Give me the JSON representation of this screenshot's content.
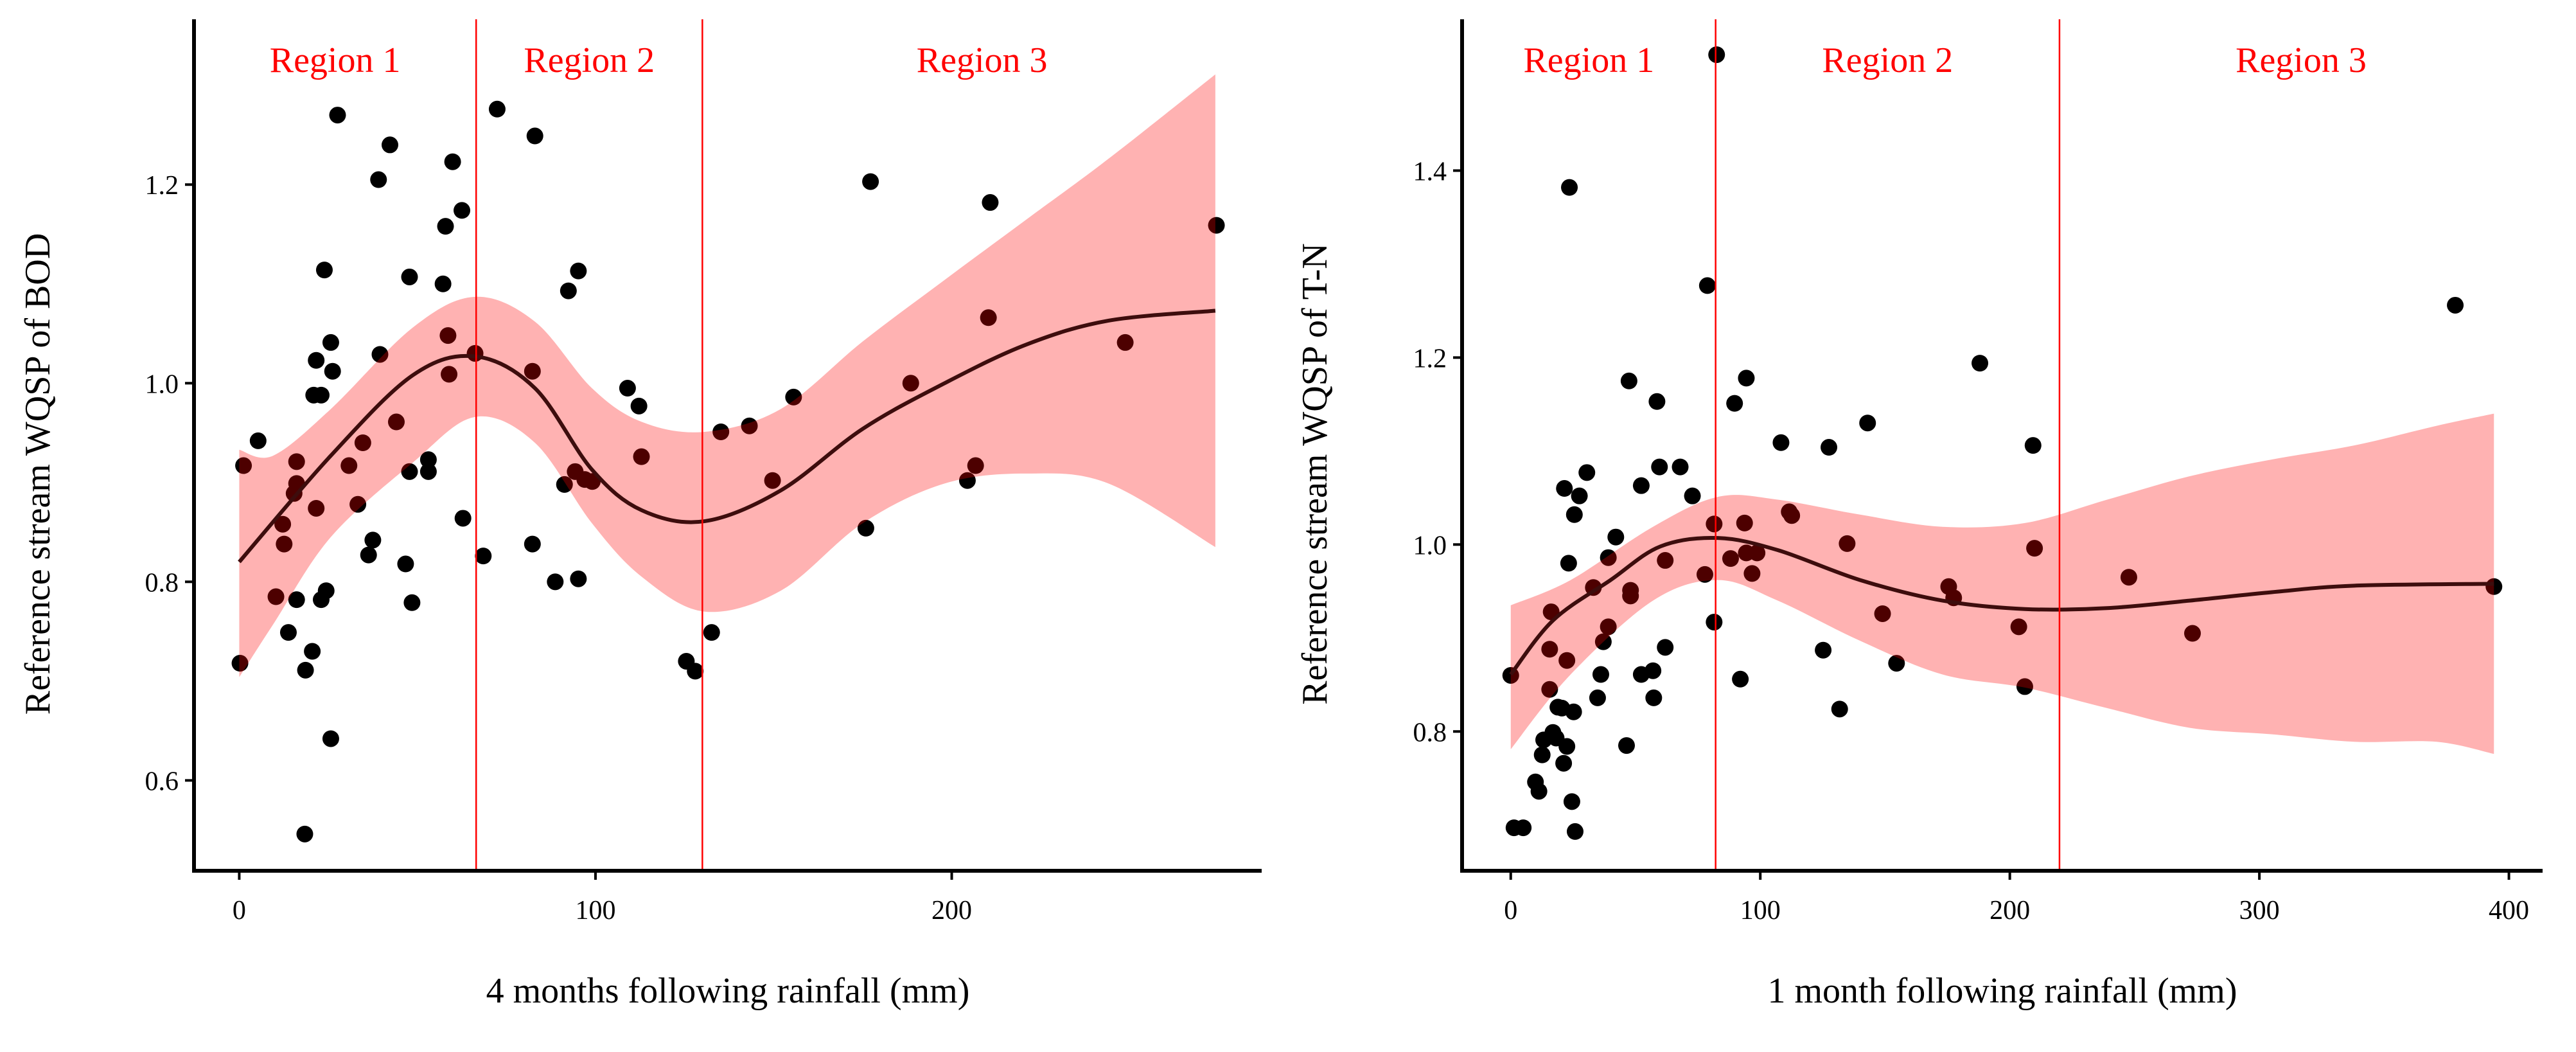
{
  "colors": {
    "points": "#000000",
    "band": "#ff0000",
    "fit_line": "#3d0d0d",
    "region_line": "#ff0000",
    "region_text": "#ff0000"
  },
  "chart_data": [
    {
      "type": "scatter",
      "title": "",
      "xlabel": "4 months following rainfall (mm)",
      "ylabel": "Reference stream WQSP of BOD",
      "xlim": [
        -12.7,
        287
      ],
      "ylim": [
        0.509,
        1.36
      ],
      "xticks": [
        0,
        100,
        200
      ],
      "xtick_labels": [
        "0",
        "100",
        "200"
      ],
      "yticks": [
        0.6,
        0.8,
        1.0,
        1.2
      ],
      "ytick_labels": [
        "0.6",
        "0.8",
        "1.0",
        "1.2"
      ],
      "grid": false,
      "regions": [
        {
          "label": "Region 1"
        },
        {
          "label": "Region 2"
        },
        {
          "label": "Region 3"
        }
      ],
      "region_boundaries": [
        66.5,
        130
      ],
      "points": [
        [
          1.2,
          0.917
        ],
        [
          0.2,
          0.718
        ],
        [
          5.3,
          0.942
        ],
        [
          27.6,
          1.27
        ],
        [
          10.3,
          0.785
        ],
        [
          12.2,
          0.858
        ],
        [
          12.6,
          0.838
        ],
        [
          13.8,
          0.749
        ],
        [
          16.1,
          0.921
        ],
        [
          16.1,
          0.899
        ],
        [
          15.4,
          0.889
        ],
        [
          16.1,
          0.782
        ],
        [
          21.6,
          0.874
        ],
        [
          18.6,
          0.711
        ],
        [
          20.5,
          0.73
        ],
        [
          18.4,
          0.546
        ],
        [
          21.6,
          1.023
        ],
        [
          20.9,
          0.988
        ],
        [
          23,
          0.988
        ],
        [
          23.9,
          1.114
        ],
        [
          25.7,
          1.041
        ],
        [
          26.2,
          1.012
        ],
        [
          23,
          0.782
        ],
        [
          24.4,
          0.791
        ],
        [
          25.7,
          0.642
        ],
        [
          30.8,
          0.917
        ],
        [
          33.3,
          0.878
        ],
        [
          34.7,
          0.94
        ],
        [
          36.3,
          0.827
        ],
        [
          37.5,
          0.842
        ],
        [
          39.1,
          1.205
        ],
        [
          39.5,
          1.029
        ],
        [
          42.3,
          1.24
        ],
        [
          44.1,
          0.961
        ],
        [
          47.8,
          1.107
        ],
        [
          47.8,
          0.911
        ],
        [
          46.7,
          0.818
        ],
        [
          48.5,
          0.779
        ],
        [
          53.1,
          0.923
        ],
        [
          53.1,
          0.911
        ],
        [
          57.2,
          1.1
        ],
        [
          57.9,
          1.158
        ],
        [
          59.9,
          1.223
        ],
        [
          58.6,
          1.048
        ],
        [
          58.9,
          1.009
        ],
        [
          62.5,
          1.174
        ],
        [
          62.8,
          0.864
        ],
        [
          66.2,
          1.03
        ],
        [
          68.5,
          0.826
        ],
        [
          72.4,
          1.276
        ],
        [
          83,
          1.249
        ],
        [
          82.3,
          1.012
        ],
        [
          82.3,
          0.838
        ],
        [
          88.7,
          0.8
        ],
        [
          91.3,
          0.898
        ],
        [
          92.4,
          1.093
        ],
        [
          95.2,
          1.113
        ],
        [
          94.3,
          0.911
        ],
        [
          95.2,
          0.803
        ],
        [
          97,
          0.903
        ],
        [
          99.1,
          0.901
        ],
        [
          109,
          0.995
        ],
        [
          112.2,
          0.977
        ],
        [
          112.9,
          0.926
        ],
        [
          125.5,
          0.72
        ],
        [
          128,
          0.71
        ],
        [
          132.6,
          0.749
        ],
        [
          135.2,
          0.951
        ],
        [
          143.2,
          0.957
        ],
        [
          149.7,
          0.902
        ],
        [
          155.6,
          0.986
        ],
        [
          175.9,
          0.854
        ],
        [
          177.2,
          1.203
        ],
        [
          188.5,
          1.0
        ],
        [
          204.4,
          0.902
        ],
        [
          206.7,
          0.917
        ],
        [
          210.3,
          1.066
        ],
        [
          210.8,
          1.182
        ],
        [
          248.7,
          1.041
        ],
        [
          274.3,
          1.159
        ]
      ],
      "fit": {
        "x": [
          0,
          25.7,
          48.7,
          66.2,
          83,
          99,
          113,
          130.6,
          152,
          175,
          198,
          221,
          244,
          274
        ],
        "y": [
          0.82,
          0.927,
          1.008,
          1.027,
          0.995,
          0.913,
          0.872,
          0.861,
          0.892,
          0.954,
          1.0,
          1.039,
          1.063,
          1.073
        ]
      },
      "band": {
        "x": [
          0,
          9.5,
          25.7,
          48.7,
          66.2,
          83,
          99,
          113,
          130.6,
          152,
          175,
          198,
          221,
          244,
          274
        ],
        "upper": [
          0.933,
          0.927,
          0.974,
          1.056,
          1.087,
          1.062,
          0.995,
          0.961,
          0.951,
          0.974,
          1.042,
          1.104,
          1.165,
          1.226,
          1.311
        ],
        "lower": [
          0.704,
          0.757,
          0.845,
          0.92,
          0.966,
          0.94,
          0.859,
          0.805,
          0.77,
          0.791,
          0.859,
          0.899,
          0.909,
          0.899,
          0.835
        ]
      }
    },
    {
      "type": "scatter",
      "title": "",
      "xlabel": "1 month following rainfall (mm)",
      "ylabel": "Reference stream WQSP of T-N",
      "xlim": [
        -19.5,
        413.5
      ],
      "ylim": [
        0.651,
        1.555
      ],
      "xticks": [
        0,
        100,
        200,
        300,
        400
      ],
      "xtick_labels": [
        "0",
        "100",
        "200",
        "300",
        "400"
      ],
      "yticks": [
        0.8,
        1.0,
        1.2,
        1.4
      ],
      "ytick_labels": [
        "0.8",
        "1.0",
        "1.2",
        "1.4"
      ],
      "grid": false,
      "regions": [
        {
          "label": "Region 1"
        },
        {
          "label": "Region 2"
        },
        {
          "label": "Region 3"
        }
      ],
      "region_boundaries": [
        82.1,
        219.9
      ],
      "points": [
        [
          0,
          0.86
        ],
        [
          1.3,
          0.697
        ],
        [
          5,
          0.697
        ],
        [
          9.9,
          0.746
        ],
        [
          11.3,
          0.736
        ],
        [
          12.6,
          0.775
        ],
        [
          13.2,
          0.791
        ],
        [
          15.6,
          0.845
        ],
        [
          15.6,
          0.888
        ],
        [
          16.2,
          0.928
        ],
        [
          16.9,
          0.799
        ],
        [
          18.2,
          0.793
        ],
        [
          18.9,
          0.826
        ],
        [
          20.5,
          0.825
        ],
        [
          21.2,
          0.766
        ],
        [
          21.5,
          1.06
        ],
        [
          22.5,
          0.876
        ],
        [
          23.2,
          0.98
        ],
        [
          23.5,
          1.382
        ],
        [
          22.5,
          0.784
        ],
        [
          24.5,
          0.725
        ],
        [
          25.2,
          0.821
        ],
        [
          25.8,
          0.693
        ],
        [
          25.5,
          1.032
        ],
        [
          27.5,
          1.052
        ],
        [
          30.5,
          1.077
        ],
        [
          33.1,
          0.954
        ],
        [
          34.8,
          0.836
        ],
        [
          36.1,
          0.861
        ],
        [
          37.1,
          0.896
        ],
        [
          39.1,
          0.912
        ],
        [
          39.1,
          0.986
        ],
        [
          42.1,
          1.008
        ],
        [
          46.4,
          0.785
        ],
        [
          47.4,
          1.175
        ],
        [
          48,
          0.951
        ],
        [
          48,
          0.945
        ],
        [
          52.3,
          1.063
        ],
        [
          52.3,
          0.861
        ],
        [
          57,
          0.865
        ],
        [
          57.3,
          0.836
        ],
        [
          58.6,
          1.153
        ],
        [
          59.6,
          1.083
        ],
        [
          61.9,
          0.983
        ],
        [
          61.9,
          0.89
        ],
        [
          67.9,
          1.083
        ],
        [
          72.8,
          1.052
        ],
        [
          77.8,
          0.968
        ],
        [
          78.8,
          1.277
        ],
        [
          81.5,
          1.022
        ],
        [
          81.5,
          0.917
        ],
        [
          82.5,
          1.524
        ],
        [
          88.1,
          0.985
        ],
        [
          89.7,
          1.151
        ],
        [
          92,
          0.856
        ],
        [
          93.7,
          1.023
        ],
        [
          94.4,
          1.178
        ],
        [
          94.4,
          0.991
        ],
        [
          96.7,
          0.969
        ],
        [
          98.7,
          0.991
        ],
        [
          108.3,
          1.109
        ],
        [
          111.6,
          1.035
        ],
        [
          112.6,
          1.031
        ],
        [
          125.2,
          0.887
        ],
        [
          127.5,
          1.104
        ],
        [
          131.8,
          0.824
        ],
        [
          134.8,
          1.001
        ],
        [
          143,
          1.13
        ],
        [
          149,
          0.926
        ],
        [
          154.6,
          0.873
        ],
        [
          175.5,
          0.955
        ],
        [
          177.5,
          0.943
        ],
        [
          188,
          1.194
        ],
        [
          203.6,
          0.912
        ],
        [
          206,
          0.848
        ],
        [
          209.3,
          1.106
        ],
        [
          209.9,
          0.996
        ],
        [
          247.7,
          0.965
        ],
        [
          273.2,
          0.905
        ],
        [
          378.5,
          1.256
        ],
        [
          394,
          0.955
        ]
      ],
      "fit": {
        "x": [
          0,
          17,
          40,
          60,
          83,
          107,
          140,
          173,
          206,
          239,
          272,
          305,
          338,
          394
        ],
        "y": [
          0.861,
          0.919,
          0.962,
          0.998,
          1.007,
          0.994,
          0.962,
          0.94,
          0.931,
          0.932,
          0.94,
          0.949,
          0.956,
          0.958
        ]
      },
      "band": {
        "x": [
          0,
          24,
          57,
          83,
          107,
          140,
          173,
          206,
          239,
          272,
          305,
          338,
          371,
          394
        ],
        "upper": [
          0.935,
          0.962,
          1.019,
          1.051,
          1.048,
          1.032,
          1.019,
          1.023,
          1.048,
          1.073,
          1.091,
          1.106,
          1.127,
          1.14
        ],
        "lower": [
          0.781,
          0.861,
          0.94,
          0.962,
          0.94,
          0.897,
          0.861,
          0.847,
          0.825,
          0.804,
          0.797,
          0.789,
          0.789,
          0.776
        ]
      }
    }
  ]
}
